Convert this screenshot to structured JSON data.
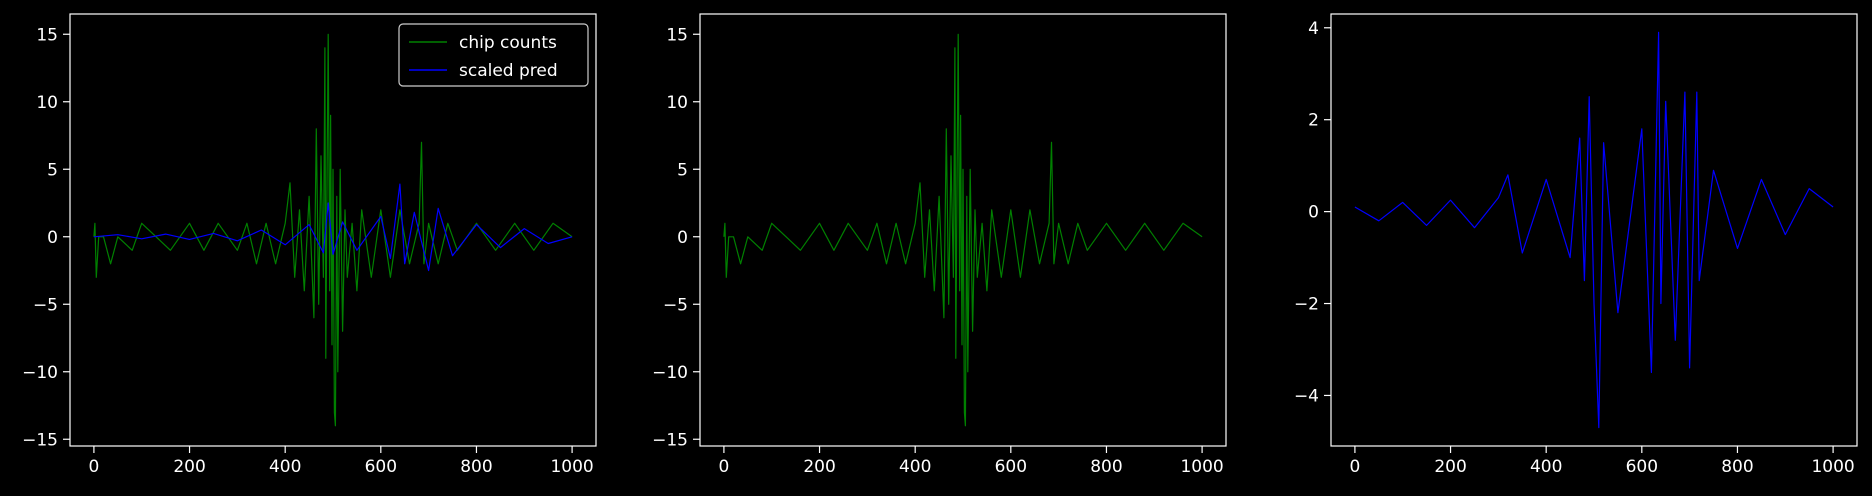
{
  "chart_data": [
    {
      "type": "line",
      "xlim": [
        -50,
        1050
      ],
      "ylim": [
        -15.5,
        16.5
      ],
      "xticks": [
        0,
        200,
        400,
        600,
        800,
        1000
      ],
      "yticks": [
        -15,
        -10,
        -5,
        0,
        5,
        10,
        15
      ],
      "xtick_labels": [
        "0",
        "200",
        "400",
        "600",
        "800",
        "1000"
      ],
      "ytick_labels": [
        "−15",
        "−10",
        "−5",
        "0",
        "5",
        "10",
        "15"
      ],
      "legend": {
        "placement": "upper-right",
        "entries": [
          "chip counts",
          "scaled pred"
        ]
      },
      "series": [
        {
          "name": "chip counts",
          "color": "#008000",
          "x": [
            0,
            2,
            5,
            10,
            20,
            35,
            50,
            80,
            100,
            130,
            160,
            200,
            230,
            260,
            300,
            320,
            340,
            360,
            380,
            400,
            410,
            420,
            430,
            440,
            450,
            460,
            465,
            470,
            475,
            480,
            483,
            485,
            488,
            490,
            493,
            495,
            498,
            500,
            503,
            505,
            508,
            510,
            515,
            520,
            525,
            530,
            540,
            550,
            560,
            580,
            600,
            620,
            640,
            660,
            680,
            685,
            690,
            700,
            720,
            740,
            760,
            800,
            840,
            880,
            920,
            960,
            1000
          ],
          "y": [
            0,
            1,
            -3,
            0,
            0,
            -2,
            0,
            -1,
            1,
            0,
            -1,
            1,
            -1,
            1,
            -1,
            1,
            -2,
            1,
            -2,
            1,
            4,
            -3,
            2,
            -4,
            3,
            -6,
            8,
            -5,
            6,
            -3,
            14,
            -9,
            7,
            15,
            -4,
            9,
            -8,
            5,
            -13,
            -14,
            3,
            -10,
            5,
            -7,
            2,
            -3,
            1,
            -4,
            2,
            -3,
            2,
            -3,
            2,
            -2,
            1,
            7,
            -2,
            1,
            -2,
            1,
            -1,
            1,
            -1,
            1,
            -1,
            1,
            0
          ]
        },
        {
          "name": "scaled pred",
          "color": "#0000ff",
          "x": [
            0,
            50,
            100,
            150,
            200,
            250,
            300,
            350,
            400,
            450,
            480,
            490,
            500,
            520,
            550,
            600,
            620,
            640,
            650,
            670,
            700,
            720,
            750,
            800,
            850,
            900,
            950,
            1000
          ],
          "y": [
            0,
            0.15,
            -0.15,
            0.2,
            -0.2,
            0.25,
            -0.3,
            0.5,
            -0.6,
            0.9,
            -1.2,
            2.5,
            -1.3,
            1.1,
            -1.0,
            1.5,
            -1.6,
            3.9,
            -2.0,
            1.8,
            -2.5,
            2.1,
            -1.4,
            0.9,
            -0.8,
            0.6,
            -0.5,
            0
          ]
        }
      ]
    },
    {
      "type": "line",
      "xlim": [
        -50,
        1050
      ],
      "ylim": [
        -15.5,
        16.5
      ],
      "xticks": [
        0,
        200,
        400,
        600,
        800,
        1000
      ],
      "yticks": [
        -15,
        -10,
        -5,
        0,
        5,
        10,
        15
      ],
      "xtick_labels": [
        "0",
        "200",
        "400",
        "600",
        "800",
        "1000"
      ],
      "ytick_labels": [
        "−15",
        "−10",
        "−5",
        "0",
        "5",
        "10",
        "15"
      ],
      "series": [
        {
          "color": "#008000",
          "x": [
            0,
            2,
            5,
            10,
            20,
            35,
            50,
            80,
            100,
            130,
            160,
            200,
            230,
            260,
            300,
            320,
            340,
            360,
            380,
            400,
            410,
            420,
            430,
            440,
            450,
            460,
            465,
            470,
            475,
            480,
            483,
            485,
            488,
            490,
            493,
            495,
            498,
            500,
            503,
            505,
            508,
            510,
            515,
            520,
            525,
            530,
            540,
            550,
            560,
            580,
            600,
            620,
            640,
            660,
            680,
            685,
            690,
            700,
            720,
            740,
            760,
            800,
            840,
            880,
            920,
            960,
            1000
          ],
          "y": [
            0,
            1,
            -3,
            0,
            0,
            -2,
            0,
            -1,
            1,
            0,
            -1,
            1,
            -1,
            1,
            -1,
            1,
            -2,
            1,
            -2,
            1,
            4,
            -3,
            2,
            -4,
            3,
            -6,
            8,
            -5,
            6,
            -3,
            14,
            -9,
            7,
            15,
            -4,
            9,
            -8,
            5,
            -13,
            -14,
            3,
            -10,
            5,
            -7,
            2,
            -3,
            1,
            -4,
            2,
            -3,
            2,
            -3,
            2,
            -2,
            1,
            7,
            -2,
            1,
            -2,
            1,
            -1,
            1,
            -1,
            1,
            -1,
            1,
            0
          ]
        }
      ]
    },
    {
      "type": "line",
      "xlim": [
        -50,
        1050
      ],
      "ylim": [
        -5.1,
        4.3
      ],
      "xticks": [
        0,
        200,
        400,
        600,
        800,
        1000
      ],
      "yticks": [
        -4,
        -2,
        0,
        2,
        4
      ],
      "xtick_labels": [
        "0",
        "200",
        "400",
        "600",
        "800",
        "1000"
      ],
      "ytick_labels": [
        "−4",
        "−2",
        "0",
        "2",
        "4"
      ],
      "series": [
        {
          "color": "#0000ff",
          "x": [
            0,
            50,
            100,
            150,
            200,
            250,
            300,
            320,
            350,
            400,
            450,
            470,
            480,
            490,
            500,
            510,
            520,
            550,
            600,
            620,
            635,
            640,
            650,
            670,
            690,
            700,
            715,
            720,
            750,
            800,
            850,
            900,
            950,
            1000
          ],
          "y": [
            0.1,
            -0.2,
            0.2,
            -0.3,
            0.25,
            -0.35,
            0.3,
            0.8,
            -0.9,
            0.7,
            -1.0,
            1.6,
            -1.5,
            2.5,
            -2.0,
            -4.7,
            1.5,
            -2.2,
            1.8,
            -3.5,
            3.9,
            -2.0,
            2.4,
            -2.8,
            2.6,
            -3.4,
            2.6,
            -1.5,
            0.9,
            -0.8,
            0.7,
            -0.5,
            0.5,
            0.1
          ]
        }
      ]
    }
  ]
}
